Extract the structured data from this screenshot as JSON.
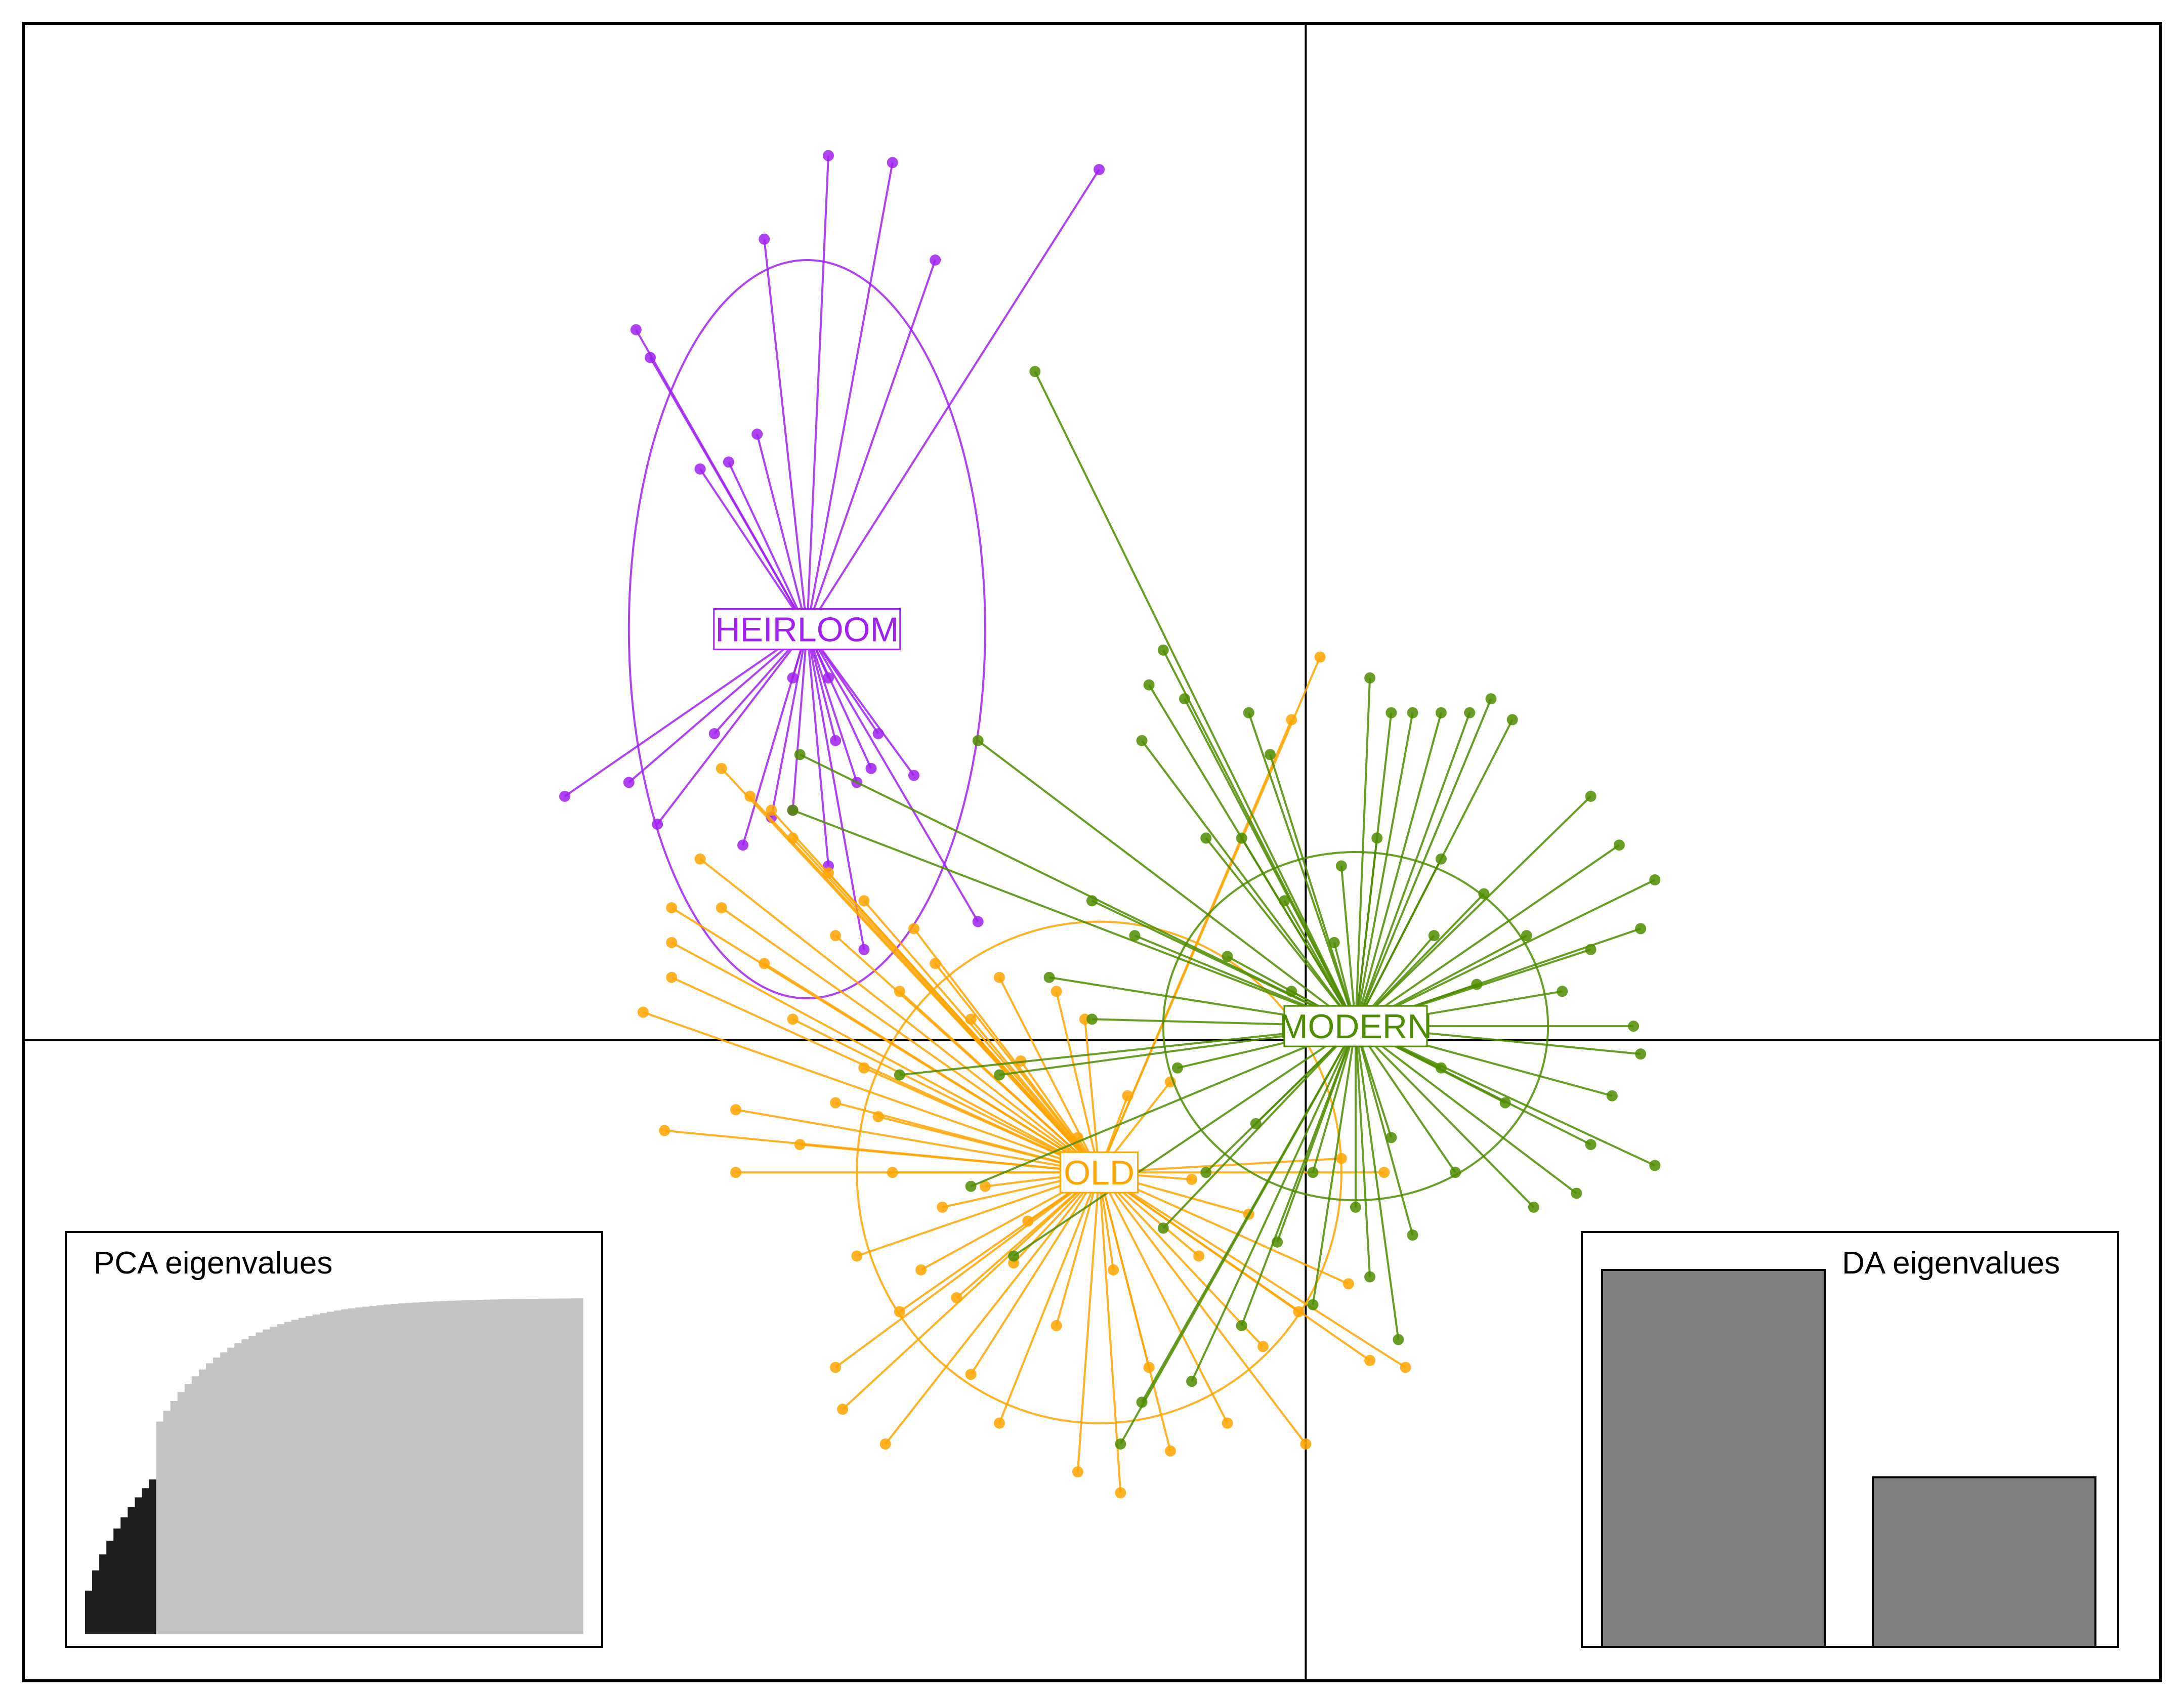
{
  "chart_data": {
    "type": "scatter",
    "title": "",
    "xlabel": "",
    "ylabel": "",
    "xlim": [
      -9,
      6
    ],
    "ylim": [
      -4.6,
      7.3
    ],
    "grid": false,
    "axes_cross": [
      0,
      0
    ],
    "groups": [
      {
        "name": "HEIRLOOM",
        "color": "#A020F0",
        "centroid": [
          -3.5,
          2.95
        ],
        "ellipse": {
          "rx": 1.25,
          "ry": 2.65
        },
        "points": [
          [
            -3.35,
            6.35
          ],
          [
            -2.9,
            6.3
          ],
          [
            -1.45,
            6.25
          ],
          [
            -3.8,
            5.75
          ],
          [
            -2.6,
            5.6
          ],
          [
            -4.7,
            5.1
          ],
          [
            -4.6,
            4.9
          ],
          [
            -3.85,
            4.35
          ],
          [
            -4.05,
            4.15
          ],
          [
            -4.25,
            4.1
          ],
          [
            -5.2,
            1.75
          ],
          [
            -4.75,
            1.85
          ],
          [
            -4.55,
            1.55
          ],
          [
            -4.15,
            2.2
          ],
          [
            -3.95,
            1.4
          ],
          [
            -3.75,
            1.6
          ],
          [
            -3.6,
            1.65
          ],
          [
            -3.3,
            2.15
          ],
          [
            -3.05,
            1.95
          ],
          [
            -3.35,
            1.25
          ],
          [
            -2.75,
            1.9
          ],
          [
            -2.3,
            0.85
          ],
          [
            -3.1,
            0.65
          ],
          [
            -3.15,
            1.85
          ],
          [
            -3.0,
            2.2
          ],
          [
            -3.6,
            2.6
          ],
          [
            -3.35,
            2.6
          ]
        ]
      },
      {
        "name": "OLD",
        "color": "#FFA500",
        "centroid": [
          -1.45,
          -0.95
        ],
        "ellipse": {
          "rx": 1.7,
          "ry": 1.8
        },
        "points": [
          [
            0.1,
            2.75
          ],
          [
            -0.1,
            2.3
          ],
          [
            -4.1,
            1.95
          ],
          [
            -3.9,
            1.75
          ],
          [
            -3.75,
            1.65
          ],
          [
            -4.25,
            1.3
          ],
          [
            -3.6,
            1.45
          ],
          [
            -3.35,
            1.2
          ],
          [
            -3.1,
            1.0
          ],
          [
            -4.1,
            0.95
          ],
          [
            -4.45,
            0.95
          ],
          [
            -4.45,
            0.7
          ],
          [
            -4.45,
            0.45
          ],
          [
            -4.65,
            0.2
          ],
          [
            -3.8,
            0.55
          ],
          [
            -3.3,
            0.75
          ],
          [
            -2.75,
            0.8
          ],
          [
            -2.6,
            0.55
          ],
          [
            -2.85,
            0.35
          ],
          [
            -3.6,
            0.15
          ],
          [
            -3.1,
            -0.2
          ],
          [
            -4.0,
            -0.5
          ],
          [
            -4.5,
            -0.65
          ],
          [
            -4.0,
            -0.95
          ],
          [
            -3.3,
            -0.45
          ],
          [
            -3.0,
            -0.55
          ],
          [
            -3.55,
            -0.75
          ],
          [
            -2.9,
            -0.95
          ],
          [
            -2.55,
            -1.2
          ],
          [
            -3.15,
            -1.55
          ],
          [
            -2.7,
            -1.65
          ],
          [
            -2.45,
            -1.85
          ],
          [
            -2.85,
            -1.95
          ],
          [
            -3.3,
            -2.35
          ],
          [
            -3.25,
            -2.65
          ],
          [
            -2.95,
            -2.9
          ],
          [
            -2.35,
            -2.4
          ],
          [
            -2.15,
            -2.75
          ],
          [
            -1.6,
            -3.1
          ],
          [
            -1.3,
            -3.25
          ],
          [
            -0.95,
            -2.95
          ],
          [
            -0.55,
            -2.75
          ],
          [
            -0.3,
            -2.2
          ],
          [
            -0.05,
            -1.95
          ],
          [
            0.3,
            -1.75
          ],
          [
            0.45,
            -2.3
          ],
          [
            0.7,
            -2.35
          ],
          [
            0.0,
            -2.9
          ],
          [
            -1.75,
            -2.05
          ],
          [
            -2.05,
            -1.6
          ],
          [
            -1.1,
            -2.35
          ],
          [
            -0.75,
            -1.55
          ],
          [
            -0.4,
            -1.25
          ],
          [
            0.25,
            -0.85
          ],
          [
            0.55,
            -0.95
          ],
          [
            -2.35,
            0.15
          ],
          [
            -2.15,
            0.45
          ],
          [
            -2.0,
            -0.15
          ],
          [
            -1.75,
            0.35
          ],
          [
            -1.25,
            -0.4
          ],
          [
            -1.6,
            -0.7
          ],
          [
            -2.25,
            -1.05
          ],
          [
            -1.95,
            -1.3
          ],
          [
            -1.35,
            -1.65
          ],
          [
            -0.8,
            -1.0
          ],
          [
            -0.95,
            -0.3
          ],
          [
            -1.55,
            0.15
          ]
        ]
      },
      {
        "name": "MODERN",
        "color": "#4E8C00",
        "centroid": [
          0.35,
          0.1
        ],
        "ellipse": {
          "rx": 1.35,
          "ry": 1.25
        },
        "points": [
          [
            -1.9,
            4.8
          ],
          [
            -1.0,
            2.8
          ],
          [
            -1.1,
            2.55
          ],
          [
            -0.85,
            2.45
          ],
          [
            -0.4,
            2.35
          ],
          [
            -0.25,
            2.05
          ],
          [
            0.45,
            2.6
          ],
          [
            0.6,
            2.35
          ],
          [
            0.75,
            2.35
          ],
          [
            0.95,
            2.35
          ],
          [
            1.15,
            2.35
          ],
          [
            1.3,
            2.45
          ],
          [
            1.45,
            2.3
          ],
          [
            -2.3,
            2.15
          ],
          [
            -3.55,
            2.05
          ],
          [
            -3.6,
            1.65
          ],
          [
            -1.15,
            2.15
          ],
          [
            -0.7,
            1.45
          ],
          [
            -0.45,
            1.45
          ],
          [
            0.5,
            1.45
          ],
          [
            2.0,
            1.75
          ],
          [
            2.2,
            1.4
          ],
          [
            2.45,
            1.15
          ],
          [
            2.35,
            0.8
          ],
          [
            2.0,
            0.65
          ],
          [
            2.3,
            0.1
          ],
          [
            2.35,
            -0.1
          ],
          [
            2.15,
            -0.4
          ],
          [
            2.0,
            -0.75
          ],
          [
            2.45,
            -0.9
          ],
          [
            1.9,
            -1.1
          ],
          [
            1.6,
            -1.2
          ],
          [
            1.05,
            -0.95
          ],
          [
            0.75,
            -1.4
          ],
          [
            0.45,
            -1.7
          ],
          [
            0.65,
            -2.15
          ],
          [
            0.05,
            -1.9
          ],
          [
            -0.45,
            -2.05
          ],
          [
            -0.8,
            -2.45
          ],
          [
            -1.15,
            -2.6
          ],
          [
            -1.3,
            -2.9
          ],
          [
            -2.15,
            -0.25
          ],
          [
            -2.85,
            -0.25
          ],
          [
            -2.35,
            -1.05
          ],
          [
            -2.05,
            -1.55
          ],
          [
            -1.5,
            1.0
          ],
          [
            -1.2,
            0.75
          ],
          [
            -1.8,
            0.45
          ],
          [
            -1.5,
            0.15
          ],
          [
            -0.9,
            -0.2
          ],
          [
            -0.55,
            0.6
          ],
          [
            -0.15,
            1.0
          ],
          [
            0.25,
            1.25
          ],
          [
            0.95,
            1.3
          ],
          [
            1.25,
            1.05
          ],
          [
            1.55,
            0.75
          ],
          [
            1.8,
            0.35
          ],
          [
            1.4,
            -0.45
          ],
          [
            0.95,
            -0.2
          ],
          [
            0.6,
            -0.7
          ],
          [
            0.05,
            -0.95
          ],
          [
            -0.35,
            -0.6
          ],
          [
            -0.7,
            -0.95
          ],
          [
            -1.0,
            -1.35
          ],
          [
            -0.2,
            -1.45
          ],
          [
            0.35,
            -1.2
          ],
          [
            1.2,
            0.4
          ],
          [
            0.9,
            0.75
          ],
          [
            -0.1,
            0.35
          ],
          [
            0.2,
            0.7
          ]
        ]
      }
    ],
    "insets": [
      {
        "title": "PCA eigenvalues",
        "type": "cumulative-bar",
        "retained_components": 10,
        "total_components": 70,
        "retained_color": "#1E1E1E",
        "discarded_color": "#C4C4C4"
      },
      {
        "title": "DA eigenvalues",
        "type": "bar",
        "values": [
          1.0,
          0.45
        ],
        "color": "#7F7F7F"
      }
    ]
  }
}
